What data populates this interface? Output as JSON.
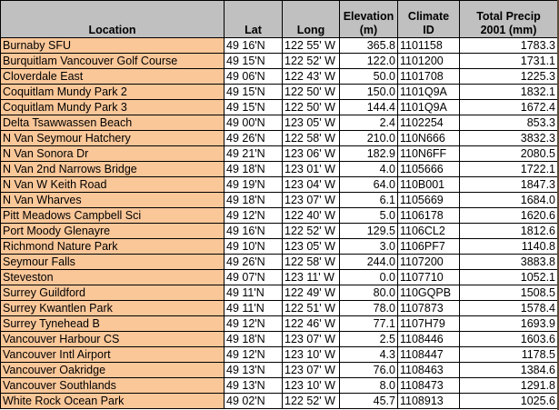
{
  "colors": {
    "header_bg": "#c0c0c0",
    "location_bg": "#fac799"
  },
  "headers": [
    "Location",
    "Lat",
    "Long",
    "Elevation (m)",
    "Climate ID",
    "Total Precip 2001 (mm)"
  ],
  "header_lines": [
    [
      "Location"
    ],
    [
      "Lat"
    ],
    [
      "Long"
    ],
    [
      "Elevation",
      "(m)"
    ],
    [
      "Climate",
      "ID"
    ],
    [
      "Total Precip",
      "2001 (mm)"
    ]
  ],
  "rows": [
    [
      "Burnaby SFU",
      "49 16'N",
      "122 55' W",
      "365.8",
      "1101158",
      "1783.3"
    ],
    [
      "Burquitlam Vancouver Golf Course",
      "49 15'N",
      "122 52' W",
      "122.0",
      "1101200",
      "1731.1"
    ],
    [
      "Cloverdale East",
      "49 06'N",
      "122 43' W",
      "50.0",
      "1101708",
      "1225.3"
    ],
    [
      "Coquitlam Mundy Park 2",
      "49 15'N",
      "122 50' W",
      "150.0",
      "1101Q9A",
      "1832.1"
    ],
    [
      "Coquitlam Mundy Park 3",
      "49 15'N",
      "122 50' W",
      "144.4",
      "1101Q9A",
      "1672.4"
    ],
    [
      "Delta Tsawwassen Beach",
      "49 00'N",
      "123 05' W",
      "2.4",
      "1102254",
      "853.3"
    ],
    [
      "N Van Seymour Hatchery",
      "49 26'N",
      "122 58' W",
      "210.0",
      "110N666",
      "3832.3"
    ],
    [
      "N Van Sonora Dr",
      "49 21'N",
      "123 06' W",
      "182.9",
      "110N6FF",
      "2080.5"
    ],
    [
      "N Van 2nd Narrows Bridge",
      "49 18'N",
      "123 01' W",
      "4.0",
      "1105666",
      "1722.1"
    ],
    [
      "N Van W Keith Road",
      "49 19'N",
      "123 04' W",
      "64.0",
      "110B001",
      "1847.3"
    ],
    [
      "N Van Wharves",
      "49 18'N",
      "123 07' W",
      "6.1",
      "1105669",
      "1684.0"
    ],
    [
      "Pitt Meadows Campbell Sci",
      "49 12'N",
      "122 40' W",
      "5.0",
      "1106178",
      "1620.6"
    ],
    [
      "Port Moody Glenayre",
      "49 16'N",
      "122 52' W",
      "129.5",
      "1106CL2",
      "1812.6"
    ],
    [
      "Richmond Nature Park",
      "49 10'N",
      "123 05' W",
      "3.0",
      "1106PF7",
      "1140.8"
    ],
    [
      "Seymour Falls",
      "49 26'N",
      "122 58' W",
      "244.0",
      "1107200",
      "3883.8"
    ],
    [
      "Steveston",
      "49 07'N",
      "123 11' W",
      "0.0",
      "1107710",
      "1052.1"
    ],
    [
      "Surrey Guildford",
      "49 11'N",
      "122 49' W",
      "80.0",
      "110GQPB",
      "1508.5"
    ],
    [
      "Surrey Kwantlen Park",
      "49 11'N",
      "122 51' W",
      "78.0",
      "1107873",
      "1578.4"
    ],
    [
      "Surrey Tynehead B",
      "49 12'N",
      "122 46' W",
      "77.1",
      "1107H79",
      "1693.9"
    ],
    [
      "Vancouver Harbour CS",
      "49 18'N",
      "123 07' W",
      "2.5",
      "1108446",
      "1603.6"
    ],
    [
      "Vancouver Intl Airport",
      "49 12'N",
      "123 10' W",
      "4.3",
      "1108447",
      "1178.5"
    ],
    [
      "Vancouver Oakridge",
      "49 13'N",
      "123 07' W",
      "76.0",
      "1108463",
      "1384.6"
    ],
    [
      "Vancouver Southlands",
      "49 13'N",
      "123 10' W",
      "8.0",
      "1108473",
      "1291.8"
    ],
    [
      "White Rock Ocean Park",
      "49 02'N",
      "122 52' W",
      "45.7",
      "1108913",
      "1025.6"
    ]
  ]
}
